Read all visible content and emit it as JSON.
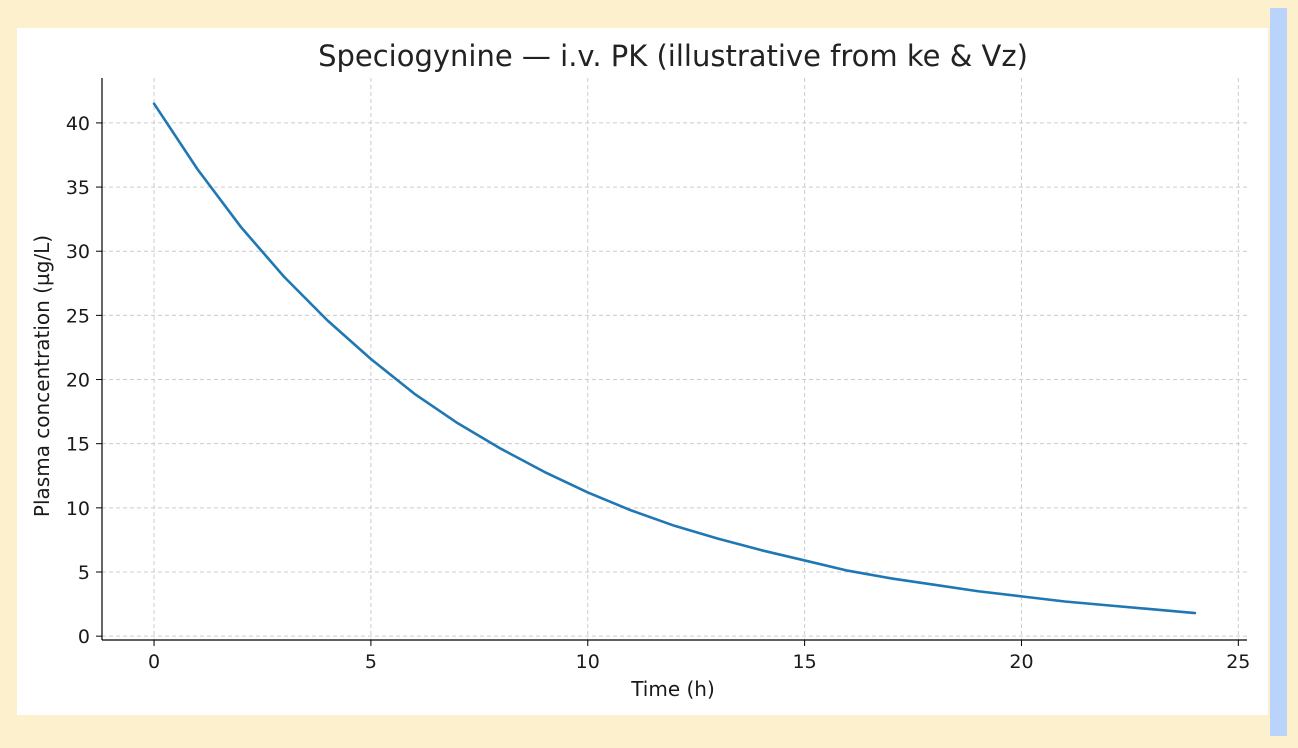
{
  "colors": {
    "page_background": "#FDF0CC",
    "side_stripe": "#B9D3FA",
    "panel": "#FFFFFF",
    "series_line": "#1F77B4",
    "grid": "#CCCCCC",
    "axis": "#000000"
  },
  "chart_data": {
    "type": "line",
    "title": "Speciogynine — i.v. PK (illustrative from ke & Vz)",
    "xlabel": "Time (h)",
    "ylabel": "Plasma concentration (µg/L)",
    "xlim": [
      -1.2,
      25.2
    ],
    "ylim": [
      -0.3,
      43.5
    ],
    "xticks": [
      0,
      5,
      10,
      15,
      20,
      25
    ],
    "yticks": [
      0,
      5,
      10,
      15,
      20,
      25,
      30,
      35,
      40
    ],
    "grid": true,
    "grid_style": "dashed",
    "legend": "none",
    "series": [
      {
        "color": "#1F77B4",
        "x": [
          0,
          1,
          2,
          3,
          4,
          5,
          6,
          7,
          8,
          9,
          10,
          11,
          12,
          13,
          14,
          15,
          16,
          17,
          18,
          19,
          20,
          21,
          22,
          23,
          24
        ],
        "y": [
          41.5,
          36.4,
          31.9,
          28.0,
          24.6,
          21.6,
          18.9,
          16.6,
          14.6,
          12.8,
          11.2,
          9.8,
          8.6,
          7.6,
          6.7,
          5.9,
          5.1,
          4.5,
          4.0,
          3.5,
          3.1,
          2.7,
          2.4,
          2.1,
          1.8
        ]
      }
    ]
  }
}
